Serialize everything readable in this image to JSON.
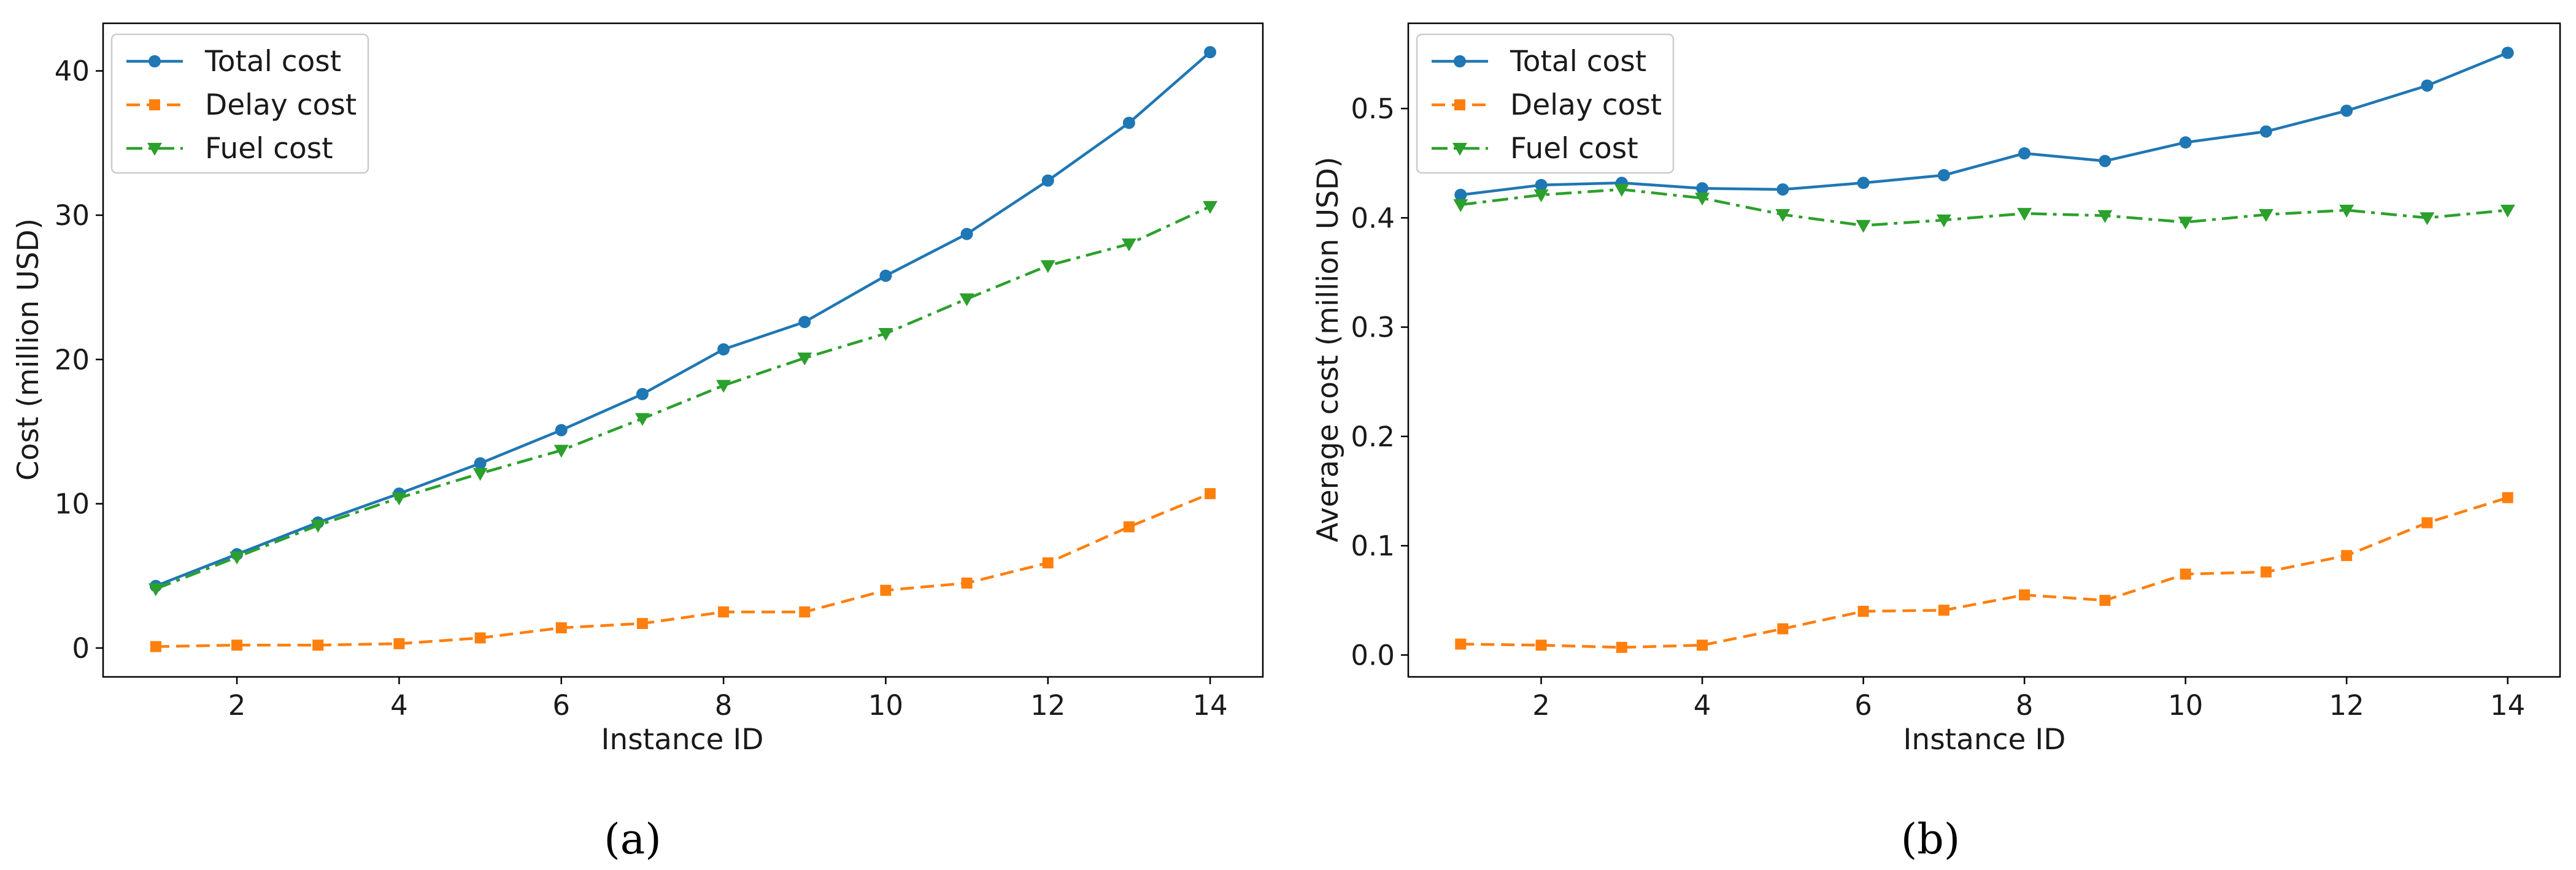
{
  "colors": {
    "total": "#1f77b4",
    "delay": "#ff7f0e",
    "fuel": "#2ca02c"
  },
  "chart_data": [
    {
      "type": "line",
      "caption": "(a)",
      "xlabel": "Instance ID",
      "ylabel": "Cost (million USD)",
      "xlim": [
        0.35,
        14.65
      ],
      "ylim": [
        -2.0,
        43.3
      ],
      "xticks": [
        2,
        4,
        6,
        8,
        10,
        12,
        14
      ],
      "yticks": [
        0,
        10,
        20,
        30,
        40
      ],
      "ytick_labels": [
        "0",
        "10",
        "20",
        "30",
        "40"
      ],
      "grid": false,
      "legend_position": "top-left",
      "x": [
        1,
        2,
        3,
        4,
        5,
        6,
        7,
        8,
        9,
        10,
        11,
        12,
        13,
        14
      ],
      "series": [
        {
          "name": "Total cost",
          "marker": "circle",
          "line": "solid",
          "values": [
            4.3,
            6.5,
            8.7,
            10.7,
            12.8,
            15.1,
            17.6,
            20.7,
            22.6,
            25.8,
            28.7,
            32.4,
            36.4,
            41.3
          ]
        },
        {
          "name": "Delay cost",
          "marker": "square",
          "line": "dashed",
          "values": [
            0.1,
            0.2,
            0.2,
            0.3,
            0.7,
            1.4,
            1.7,
            2.5,
            2.5,
            4.0,
            4.5,
            5.9,
            8.4,
            10.7
          ]
        },
        {
          "name": "Fuel cost",
          "marker": "triangle-down",
          "line": "dashdot",
          "values": [
            4.1,
            6.3,
            8.5,
            10.4,
            12.1,
            13.7,
            15.9,
            18.2,
            20.1,
            21.8,
            24.2,
            26.5,
            28.0,
            30.6
          ]
        }
      ]
    },
    {
      "type": "line",
      "caption": "(b)",
      "xlabel": "Instance ID",
      "ylabel": "Average cost (million USD)",
      "xlim": [
        0.35,
        14.65
      ],
      "ylim": [
        -0.02,
        0.578
      ],
      "xticks": [
        2,
        4,
        6,
        8,
        10,
        12,
        14
      ],
      "yticks": [
        0.0,
        0.1,
        0.2,
        0.3,
        0.4,
        0.5
      ],
      "ytick_labels": [
        "0.0",
        "0.1",
        "0.2",
        "0.3",
        "0.4",
        "0.5"
      ],
      "grid": false,
      "legend_position": "top-left",
      "x": [
        1,
        2,
        3,
        4,
        5,
        6,
        7,
        8,
        9,
        10,
        11,
        12,
        13,
        14
      ],
      "series": [
        {
          "name": "Total cost",
          "marker": "circle",
          "line": "solid",
          "values": [
            0.421,
            0.43,
            0.432,
            0.427,
            0.426,
            0.432,
            0.439,
            0.459,
            0.452,
            0.469,
            0.479,
            0.498,
            0.521,
            0.551
          ]
        },
        {
          "name": "Delay cost",
          "marker": "square",
          "line": "dashed",
          "values": [
            0.01,
            0.009,
            0.007,
            0.009,
            0.024,
            0.04,
            0.041,
            0.055,
            0.05,
            0.074,
            0.076,
            0.091,
            0.121,
            0.144
          ]
        },
        {
          "name": "Fuel cost",
          "marker": "triangle-down",
          "line": "dashdot",
          "values": [
            0.412,
            0.421,
            0.426,
            0.418,
            0.403,
            0.393,
            0.398,
            0.404,
            0.402,
            0.396,
            0.403,
            0.407,
            0.4,
            0.407
          ]
        }
      ]
    }
  ]
}
